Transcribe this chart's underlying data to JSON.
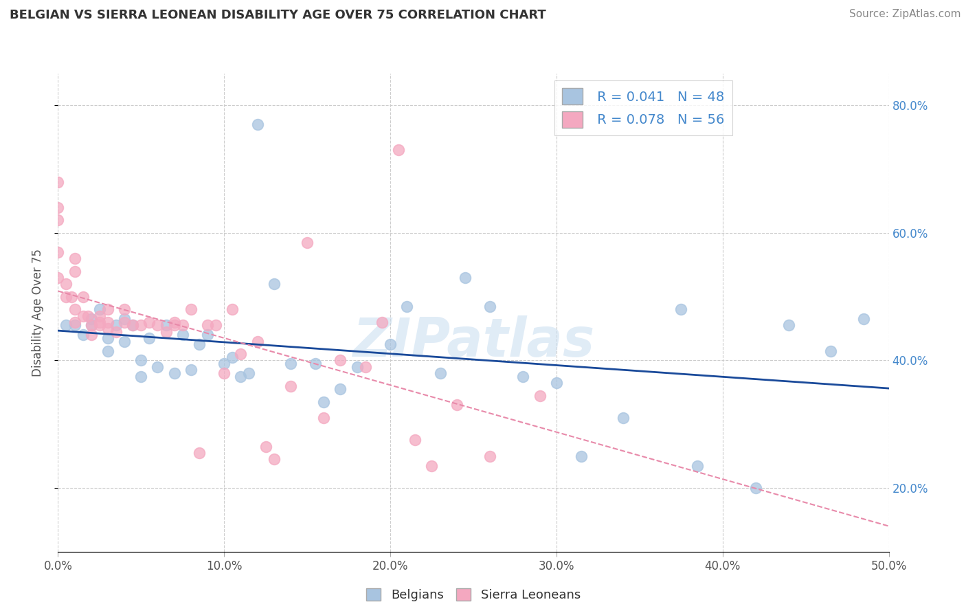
{
  "title": "BELGIAN VS SIERRA LEONEAN DISABILITY AGE OVER 75 CORRELATION CHART",
  "source": "Source: ZipAtlas.com",
  "ylabel": "Disability Age Over 75",
  "xlabel_belgians": "Belgians",
  "xlabel_sierraleoneans": "Sierra Leoneans",
  "xlim": [
    0.0,
    0.5
  ],
  "ylim": [
    0.1,
    0.85
  ],
  "yticks": [
    0.2,
    0.4,
    0.6,
    0.8
  ],
  "ytick_labels": [
    "20.0%",
    "40.0%",
    "60.0%",
    "80.0%"
  ],
  "xticks": [
    0.0,
    0.1,
    0.2,
    0.3,
    0.4,
    0.5
  ],
  "xtick_labels": [
    "0.0%",
    "10.0%",
    "20.0%",
    "30.0%",
    "40.0%",
    "50.0%"
  ],
  "belgian_R": 0.041,
  "belgian_N": 48,
  "sierraleonean_R": 0.078,
  "sierraleonean_N": 56,
  "belgian_color": "#a8c4e0",
  "sierraleonean_color": "#f4a8c0",
  "belgian_line_color": "#1a4a9a",
  "sierraleonean_line_color": "#e88aaa",
  "legend_text_color": "#4488cc",
  "watermark": "ZIPatlas",
  "belgian_points_x": [
    0.005,
    0.01,
    0.015,
    0.02,
    0.02,
    0.025,
    0.03,
    0.03,
    0.035,
    0.04,
    0.04,
    0.045,
    0.05,
    0.05,
    0.055,
    0.06,
    0.065,
    0.07,
    0.075,
    0.08,
    0.085,
    0.09,
    0.1,
    0.105,
    0.11,
    0.115,
    0.12,
    0.13,
    0.14,
    0.155,
    0.16,
    0.17,
    0.18,
    0.2,
    0.21,
    0.23,
    0.245,
    0.26,
    0.28,
    0.3,
    0.315,
    0.34,
    0.375,
    0.385,
    0.42,
    0.44,
    0.465,
    0.485
  ],
  "belgian_points_y": [
    0.455,
    0.455,
    0.44,
    0.455,
    0.465,
    0.48,
    0.415,
    0.435,
    0.455,
    0.43,
    0.465,
    0.455,
    0.375,
    0.4,
    0.435,
    0.39,
    0.455,
    0.38,
    0.44,
    0.385,
    0.425,
    0.44,
    0.395,
    0.405,
    0.375,
    0.38,
    0.77,
    0.52,
    0.395,
    0.395,
    0.335,
    0.355,
    0.39,
    0.425,
    0.485,
    0.38,
    0.53,
    0.485,
    0.375,
    0.365,
    0.25,
    0.31,
    0.48,
    0.235,
    0.2,
    0.455,
    0.415,
    0.465
  ],
  "sierraleonean_points_x": [
    0.0,
    0.0,
    0.0,
    0.0,
    0.0,
    0.005,
    0.005,
    0.008,
    0.01,
    0.01,
    0.01,
    0.01,
    0.015,
    0.015,
    0.018,
    0.02,
    0.02,
    0.025,
    0.025,
    0.025,
    0.03,
    0.03,
    0.03,
    0.035,
    0.04,
    0.04,
    0.045,
    0.05,
    0.055,
    0.06,
    0.065,
    0.07,
    0.07,
    0.075,
    0.08,
    0.085,
    0.09,
    0.095,
    0.1,
    0.105,
    0.11,
    0.12,
    0.125,
    0.13,
    0.14,
    0.15,
    0.16,
    0.17,
    0.185,
    0.195,
    0.205,
    0.215,
    0.225,
    0.24,
    0.26,
    0.29
  ],
  "sierraleonean_points_y": [
    0.62,
    0.64,
    0.68,
    0.57,
    0.53,
    0.52,
    0.5,
    0.5,
    0.46,
    0.48,
    0.54,
    0.56,
    0.5,
    0.47,
    0.47,
    0.455,
    0.44,
    0.47,
    0.46,
    0.455,
    0.45,
    0.46,
    0.48,
    0.445,
    0.46,
    0.48,
    0.455,
    0.455,
    0.46,
    0.455,
    0.445,
    0.46,
    0.455,
    0.455,
    0.48,
    0.255,
    0.455,
    0.455,
    0.38,
    0.48,
    0.41,
    0.43,
    0.265,
    0.245,
    0.36,
    0.585,
    0.31,
    0.4,
    0.39,
    0.46,
    0.73,
    0.275,
    0.235,
    0.33,
    0.25,
    0.345
  ]
}
